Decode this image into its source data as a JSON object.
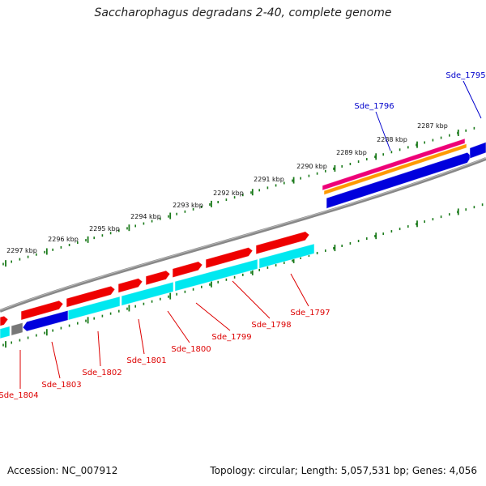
{
  "title": "Saccharophagus degradans 2-40, complete genome",
  "accession": "Accession: NC_007912",
  "summary": "Topology: circular; Length: 5,057,531 bp; Genes: 4,056",
  "colors": {
    "forward_cds": "#ee0000",
    "reverse_cds": "#00e8f0",
    "blue_feature": "#0000dd",
    "magenta_feature": "#ee0077",
    "orange_feature": "#ff9900",
    "gray_feature": "#777777",
    "backbone": "#888888",
    "ticks": "#1a7a1a",
    "label_red": "#dd0000",
    "label_blue": "#0000cc"
  },
  "scale_labels": [
    "2287 kbp",
    "2288 kbp",
    "2289 kbp",
    "2290 kbp",
    "2291 kbp",
    "2292 kbp",
    "2293 kbp",
    "2294 kbp",
    "2295 kbp",
    "2296 kbp",
    "2297 kbp"
  ],
  "gene_labels": [
    {
      "text": "Sde_1795",
      "color": "blue"
    },
    {
      "text": "Sde_1796",
      "color": "blue"
    },
    {
      "text": "Sde_1797",
      "color": "red"
    },
    {
      "text": "Sde_1798",
      "color": "red"
    },
    {
      "text": "Sde_1799",
      "color": "red"
    },
    {
      "text": "Sde_1800",
      "color": "red"
    },
    {
      "text": "Sde_1801",
      "color": "red"
    },
    {
      "text": "Sde_1802",
      "color": "red"
    },
    {
      "text": "Sde_1803",
      "color": "red"
    },
    {
      "text": "Sde_1804",
      "color": "red"
    }
  ]
}
